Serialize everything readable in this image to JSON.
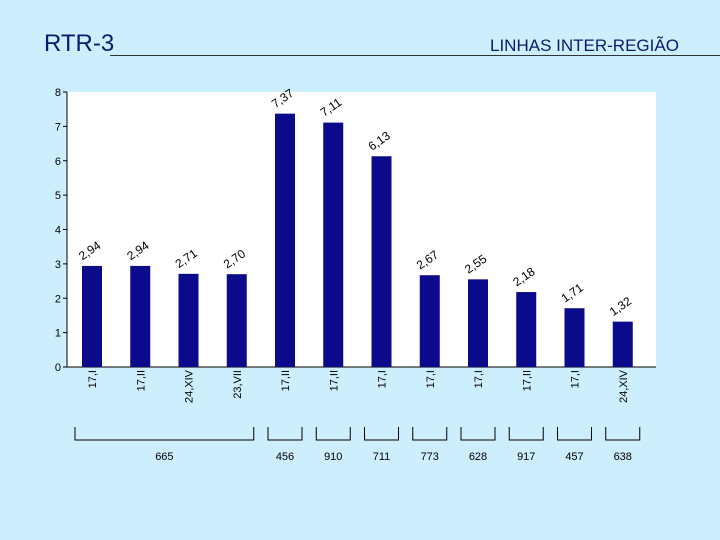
{
  "slide": {
    "title": "RTR-3",
    "subtitle": "LINHAS INTER-REGIÃO"
  },
  "colors": {
    "background": "#cdeefd",
    "plot_area": "#ffffff",
    "bar": "#0a0a8a",
    "text": "#0a1a6e"
  },
  "chart_data": {
    "type": "bar",
    "categories": [
      "17,I",
      "17,II",
      "24,XIV",
      "23,VII",
      "17,II",
      "17,II",
      "17,I",
      "17,I",
      "17,I",
      "17,II",
      "17,I",
      "24,XIV"
    ],
    "values": [
      2.94,
      2.94,
      2.71,
      2.7,
      7.37,
      7.11,
      6.13,
      2.67,
      2.55,
      2.18,
      1.71,
      1.32
    ],
    "data_labels": [
      "2,94",
      "2,94",
      "2,71",
      "2,70",
      "7,37",
      "7,11",
      "6,13",
      "2,67",
      "2,55",
      "2,18",
      "1,71",
      "1,32"
    ],
    "ylim": [
      0,
      8
    ],
    "yticks": [
      "0",
      "1",
      "2",
      "3",
      "4",
      "5",
      "6",
      "7",
      "8"
    ],
    "grid": false,
    "title": "",
    "xlabel": "",
    "ylabel": "",
    "groups": [
      {
        "label": "665",
        "from": 0,
        "to": 3
      },
      {
        "label": "456",
        "from": 4,
        "to": 4
      },
      {
        "label": "910",
        "from": 5,
        "to": 5
      },
      {
        "label": "711",
        "from": 6,
        "to": 6
      },
      {
        "label": "773",
        "from": 7,
        "to": 7
      },
      {
        "label": "628",
        "from": 8,
        "to": 8
      },
      {
        "label": "917",
        "from": 9,
        "to": 9
      },
      {
        "label": "457",
        "from": 10,
        "to": 10
      },
      {
        "label": "638",
        "from": 11,
        "to": 11
      }
    ]
  }
}
